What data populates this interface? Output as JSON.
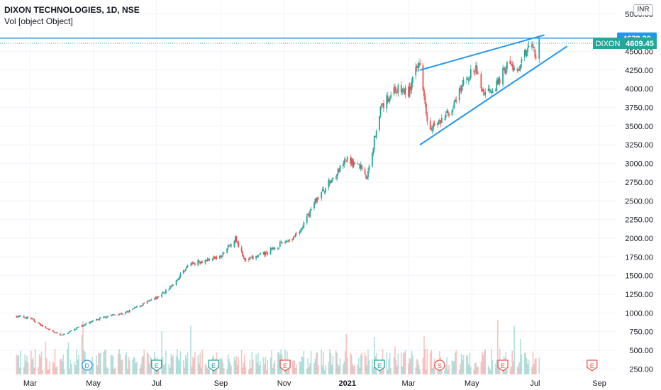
{
  "header": {
    "title": "DIXON TECHNOLOGIES, 1D, NSE",
    "volume_label": "Vol [object Object]",
    "currency": "INR"
  },
  "colors": {
    "up": "#26a69a",
    "down": "#ef5350",
    "trendline": "#2196f3",
    "last_price": "#26a69a",
    "grid": "#f0f3fa",
    "axis_text": "#131722"
  },
  "price_axis": {
    "ticks": [
      "250.00",
      "500.00",
      "750.00",
      "1000.00",
      "1250.00",
      "1500.00",
      "1750.00",
      "2000.00",
      "2250.00",
      "2500.00",
      "2750.00",
      "3000.00",
      "3250.00",
      "3500.00",
      "3750.00",
      "4000.00",
      "4250.00",
      "4500.00",
      "5000.00"
    ],
    "horizontal_line_label": "4678.20",
    "symbol_label": "DIXON",
    "last_price_label": "4609.45"
  },
  "time_axis": {
    "labels": [
      "Mar",
      "May",
      "Jul",
      "Sep",
      "Nov",
      "2021",
      "Mar",
      "May",
      "Jul",
      "Sep"
    ]
  },
  "event_markers": [
    "D",
    "E",
    "E",
    "E",
    "E",
    "S",
    "E",
    "E"
  ],
  "chart_data": {
    "type": "candlestick",
    "title": "DIXON TECHNOLOGIES, 1D, NSE",
    "y_unit": "INR",
    "ylim": [
      180,
      5150
    ],
    "price_range": [
      630,
      4680
    ],
    "close_path": [
      [
        "2020-02-15",
        960
      ],
      [
        "2020-03-01",
        930
      ],
      [
        "2020-03-20",
        760
      ],
      [
        "2020-04-01",
        700
      ],
      [
        "2020-04-15",
        800
      ],
      [
        "2020-05-01",
        890
      ],
      [
        "2020-05-15",
        960
      ],
      [
        "2020-06-01",
        1000
      ],
      [
        "2020-06-15",
        1100
      ],
      [
        "2020-07-01",
        1200
      ],
      [
        "2020-07-15",
        1350
      ],
      [
        "2020-08-01",
        1650
      ],
      [
        "2020-08-15",
        1700
      ],
      [
        "2020-09-01",
        1750
      ],
      [
        "2020-09-15",
        2000
      ],
      [
        "2020-09-25",
        1700
      ],
      [
        "2020-10-15",
        1800
      ],
      [
        "2020-11-01",
        1950
      ],
      [
        "2020-11-15",
        2050
      ],
      [
        "2020-12-01",
        2500
      ],
      [
        "2020-12-15",
        2750
      ],
      [
        "2021-01-01",
        3050
      ],
      [
        "2021-01-15",
        2950
      ],
      [
        "2021-01-20",
        2800
      ],
      [
        "2021-02-01",
        3700
      ],
      [
        "2021-02-15",
        4000
      ],
      [
        "2021-03-01",
        3950
      ],
      [
        "2021-03-12",
        4380
      ],
      [
        "2021-03-20",
        3500
      ],
      [
        "2021-04-01",
        3550
      ],
      [
        "2021-04-15",
        3800
      ],
      [
        "2021-04-25",
        4150
      ],
      [
        "2021-05-05",
        4250
      ],
      [
        "2021-05-12",
        3950
      ],
      [
        "2021-05-25",
        4050
      ],
      [
        "2021-06-05",
        4350
      ],
      [
        "2021-06-15",
        4200
      ],
      [
        "2021-06-25",
        4650
      ],
      [
        "2021-07-02",
        4450
      ],
      [
        "2021-07-05",
        4609.45
      ]
    ],
    "horizontal_line": 4678.2,
    "last_price": 4609.45,
    "trendlines": [
      {
        "from": [
          "2021-03-12",
          4250
        ],
        "to": [
          "2021-07-10",
          4720
        ]
      },
      {
        "from": [
          "2021-03-12",
          3250
        ],
        "to": [
          "2021-08-01",
          4570
        ]
      }
    ],
    "volume": {
      "max_volume_hint": "relative",
      "shown": true
    },
    "grid": true,
    "legend": "none"
  }
}
